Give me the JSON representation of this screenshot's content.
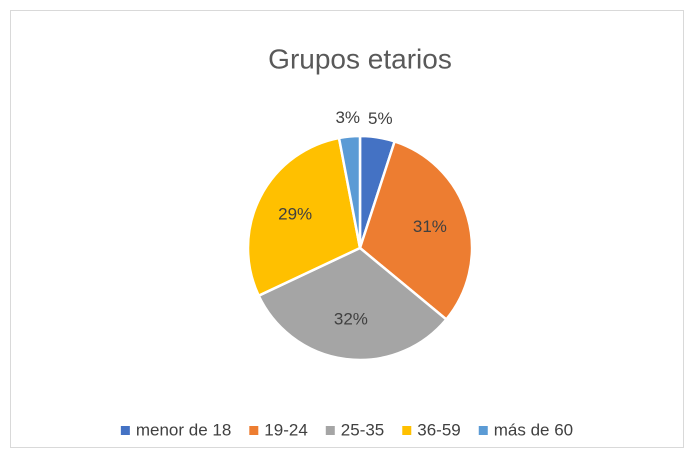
{
  "chart_data": {
    "type": "pie",
    "title": "Grupos etarios",
    "categories": [
      "menor de 18",
      "19-24",
      "25-35",
      "36-59",
      "más de 60"
    ],
    "values": [
      5,
      31,
      32,
      29,
      3
    ],
    "value_labels": [
      "5%",
      "31%",
      "32%",
      "29%",
      "3%"
    ],
    "colors": [
      "#4472c4",
      "#ed7d31",
      "#a5a5a5",
      "#ffc000",
      "#5b9bd5"
    ],
    "legend": "bottom"
  }
}
